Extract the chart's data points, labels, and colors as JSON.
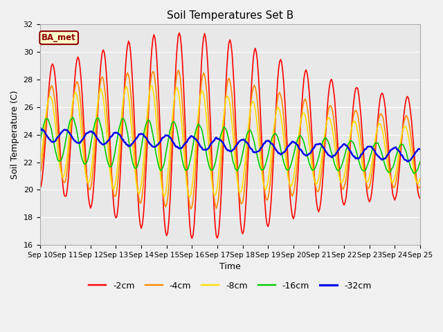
{
  "title": "Soil Temperatures Set B",
  "xlabel": "Time",
  "ylabel": "Soil Temperature (C)",
  "ylim": [
    16,
    32
  ],
  "background_color": "#e8e8e8",
  "fig_bg_color": "#f0f0f0",
  "annotation_text": "BA_met",
  "annotation_color": "#8B0000",
  "annotation_bg": "#ffffcc",
  "series_colors": [
    "#ff0000",
    "#ff8800",
    "#ffdd00",
    "#00cc00",
    "#0000ee"
  ],
  "series_labels": [
    "-2cm",
    "-4cm",
    "-8cm",
    "-16cm",
    "-32cm"
  ],
  "series_widths": [
    1.2,
    1.2,
    1.2,
    1.2,
    1.8
  ],
  "x_tick_labels": [
    "Sep 10",
    "Sep 11",
    "Sep 12",
    "Sep 13",
    "Sep 14",
    "Sep 15",
    "Sep 16",
    "Sep 17",
    "Sep 18",
    "Sep 19",
    "Sep 20",
    "Sep 21",
    "Sep 22",
    "Sep 23",
    "Sep 24",
    "Sep 25"
  ],
  "figsize": [
    6.4,
    4.8
  ],
  "dpi": 100
}
